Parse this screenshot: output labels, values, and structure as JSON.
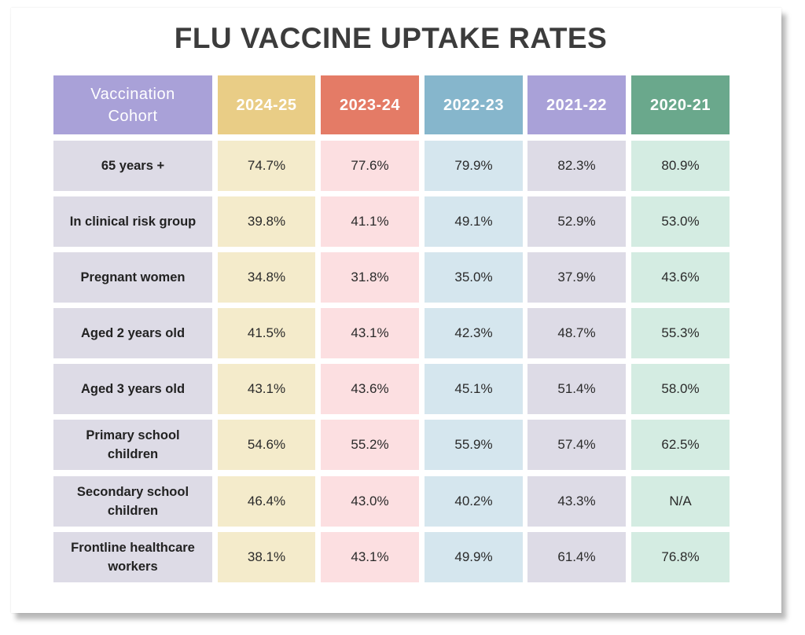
{
  "title": "FLU VACCINE UPTAKE RATES",
  "colors": {
    "cohort_header": "#a9a1d8",
    "cohort_cell": "#dddbe6",
    "y2024_header": "#e9cd86",
    "y2024_cell": "#f4ebcb",
    "y2023_header": "#e47b66",
    "y2023_cell": "#fcdfe1",
    "y2022_header": "#86b6cc",
    "y2022_cell": "#d5e6ee",
    "y2021_header": "#a9a1d8",
    "y2021_cell": "#dddbe6",
    "y2020_header": "#6aa88c",
    "y2020_cell": "#d4ece2"
  },
  "chart_data": {
    "type": "table",
    "title": "FLU VACCINE UPTAKE RATES",
    "columns": [
      "Vaccination Cohort",
      "2024-25",
      "2023-24",
      "2022-23",
      "2021-22",
      "2020-21"
    ],
    "rows": [
      {
        "cohort": "65 years +",
        "values": [
          "74.7%",
          "77.6%",
          "79.9%",
          "82.3%",
          "80.9%"
        ]
      },
      {
        "cohort": "In clinical risk group",
        "values": [
          "39.8%",
          "41.1%",
          "49.1%",
          "52.9%",
          "53.0%"
        ]
      },
      {
        "cohort": "Pregnant women",
        "values": [
          "34.8%",
          "31.8%",
          "35.0%",
          "37.9%",
          "43.6%"
        ]
      },
      {
        "cohort": "Aged 2 years old",
        "values": [
          "41.5%",
          "43.1%",
          "42.3%",
          "48.7%",
          "55.3%"
        ]
      },
      {
        "cohort": "Aged 3 years old",
        "values": [
          "43.1%",
          "43.6%",
          "45.1%",
          "51.4%",
          "58.0%"
        ]
      },
      {
        "cohort": "Primary school children",
        "values": [
          "54.6%",
          "55.2%",
          "55.9%",
          "57.4%",
          "62.5%"
        ]
      },
      {
        "cohort": "Secondary school children",
        "values": [
          "46.4%",
          "43.0%",
          "40.2%",
          "43.3%",
          "N/A"
        ]
      },
      {
        "cohort": "Frontline healthcare workers",
        "values": [
          "38.1%",
          "43.1%",
          "49.9%",
          "61.4%",
          "76.8%"
        ]
      }
    ]
  }
}
